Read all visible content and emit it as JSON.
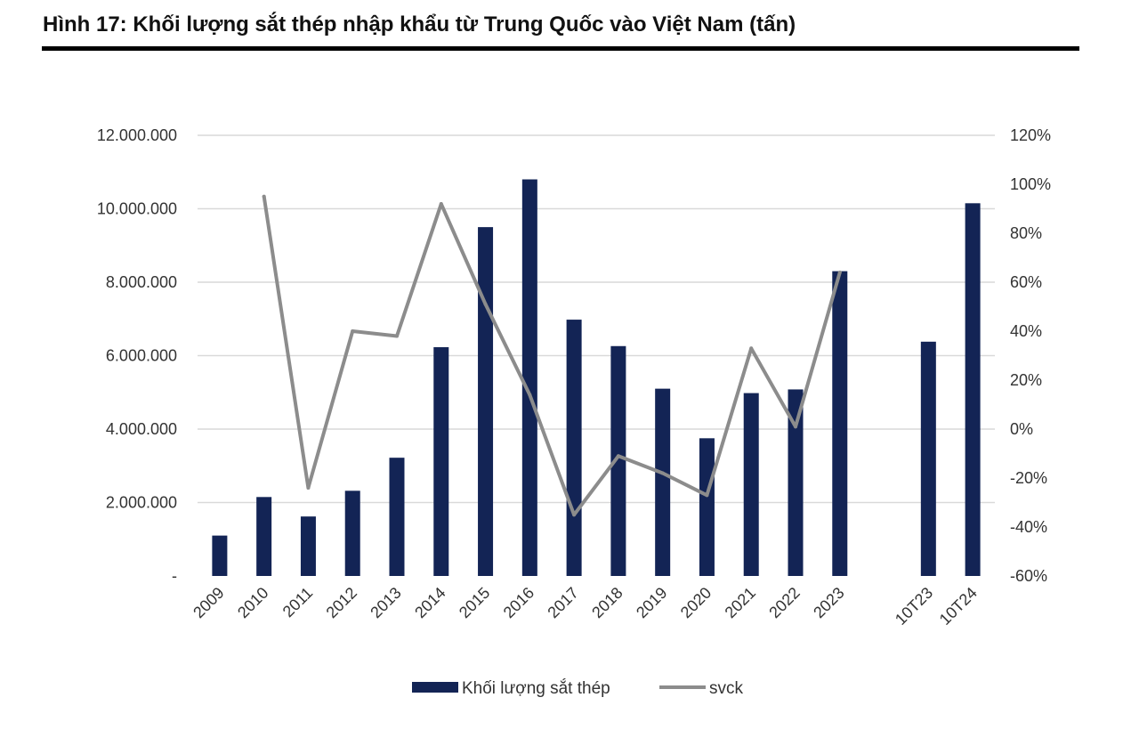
{
  "figure": {
    "title": "Hình 17: Khối lượng sắt thép nhập khẩu từ Trung Quốc vào Việt Nam (tấn)"
  },
  "chart_data": {
    "type": "bar",
    "categories": [
      "2009",
      "2010",
      "2011",
      "2012",
      "2013",
      "2014",
      "2015",
      "2016",
      "2017",
      "2018",
      "2019",
      "2020",
      "2021",
      "2022",
      "2023",
      "",
      "10T23",
      "10T24"
    ],
    "series": [
      {
        "name": "Khối lượng sắt thép",
        "type": "bar",
        "axis": "left",
        "color": "#132455",
        "values": [
          1100000,
          2150000,
          1620000,
          2320000,
          3220000,
          6230000,
          9500000,
          10800000,
          6980000,
          6260000,
          5100000,
          3750000,
          4980000,
          5080000,
          8300000,
          null,
          6380000,
          10150000
        ]
      },
      {
        "name": "svck",
        "type": "line",
        "axis": "right",
        "color": "#8c8c8c",
        "values": [
          null,
          95,
          -24,
          40,
          38,
          92,
          51,
          14,
          -35,
          -11,
          -18,
          -27,
          33,
          1,
          64,
          null,
          null,
          null
        ]
      }
    ],
    "y_left": {
      "min": 0,
      "max": 12000000,
      "tick_labels": [
        "-",
        "2.000.000",
        "4.000.000",
        "6.000.000",
        "8.000.000",
        "10.000.000",
        "12.000.000"
      ]
    },
    "y_right": {
      "min": -60,
      "max": 120,
      "tick_labels": [
        "-60%",
        "-40%",
        "-20%",
        "0%",
        "20%",
        "40%",
        "60%",
        "80%",
        "100%",
        "120%"
      ]
    },
    "grid": true,
    "legend_position": "bottom"
  }
}
